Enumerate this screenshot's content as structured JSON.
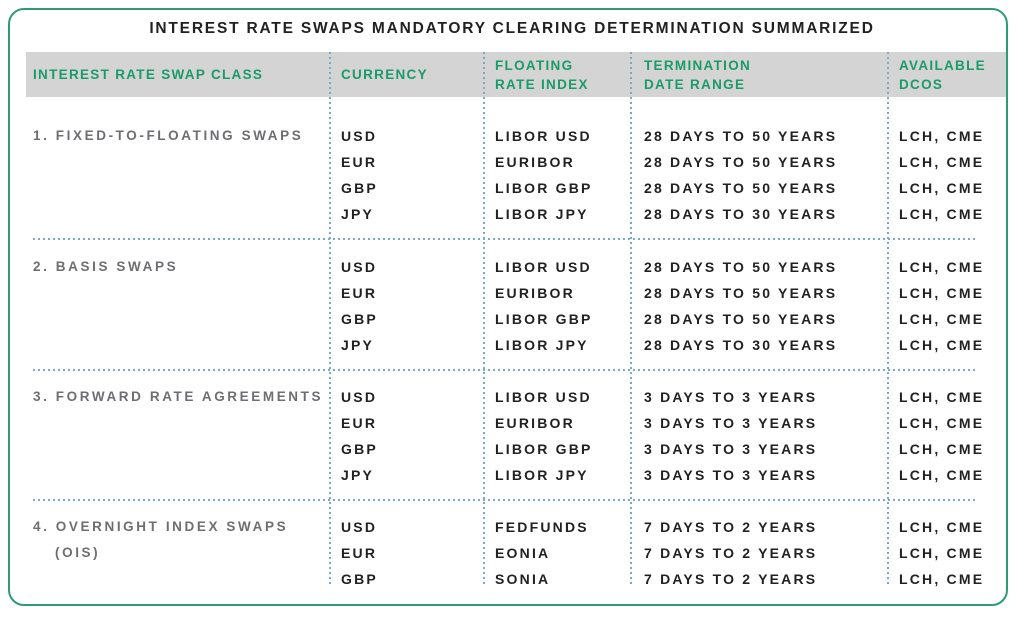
{
  "title": "INTEREST RATE SWAPS MANDATORY CLEARING DETERMINATION SUMMARIZED",
  "colors": {
    "border_green": "#2e9b74",
    "header_text_green": "#1a9b68",
    "header_band_gray": "#d4d4d4",
    "body_text_dark": "#232020",
    "swap_class_gray": "#6d6e71",
    "dotted_separator_blue": "#7aaac6"
  },
  "table": {
    "headers": [
      {
        "lines": [
          "INTEREST RATE SWAP CLASS"
        ]
      },
      {
        "lines": [
          "CURRENCY"
        ]
      },
      {
        "lines": [
          "FLOATING",
          "RATE INDEX"
        ]
      },
      {
        "lines": [
          "TERMINATION",
          "DATE RANGE"
        ]
      },
      {
        "lines": [
          "AVAILABLE",
          "DCOS"
        ]
      }
    ],
    "groups": [
      {
        "swap_class_lines": [
          "1. FIXED-TO-FLOATING SWAPS"
        ],
        "currencies": [
          "USD",
          "EUR",
          "GBP",
          "JPY"
        ],
        "indexes": [
          "LIBOR USD",
          "EURIBOR",
          "LIBOR GBP",
          "LIBOR JPY"
        ],
        "ranges": [
          "28 DAYS TO 50 YEARS",
          "28 DAYS TO 50 YEARS",
          "28 DAYS TO 50 YEARS",
          "28 DAYS TO 30 YEARS"
        ],
        "dcos": [
          "LCH, CME",
          "LCH, CME",
          "LCH, CME",
          "LCH, CME"
        ]
      },
      {
        "swap_class_lines": [
          "2. BASIS SWAPS"
        ],
        "currencies": [
          "USD",
          "EUR",
          "GBP",
          "JPY"
        ],
        "indexes": [
          "LIBOR USD",
          "EURIBOR",
          "LIBOR GBP",
          "LIBOR JPY"
        ],
        "ranges": [
          "28 DAYS TO 50 YEARS",
          "28 DAYS TO 50 YEARS",
          "28 DAYS TO 50 YEARS",
          "28 DAYS TO 30 YEARS"
        ],
        "dcos": [
          "LCH, CME",
          "LCH, CME",
          "LCH, CME",
          "LCH, CME"
        ]
      },
      {
        "swap_class_lines": [
          "3. FORWARD RATE AGREEMENTS"
        ],
        "currencies": [
          "USD",
          "EUR",
          "GBP",
          "JPY"
        ],
        "indexes": [
          "LIBOR USD",
          "EURIBOR",
          "LIBOR GBP",
          "LIBOR JPY"
        ],
        "ranges": [
          "3 DAYS TO 3 YEARS",
          "3 DAYS TO 3 YEARS",
          "3 DAYS TO 3 YEARS",
          "3 DAYS TO 3 YEARS"
        ],
        "dcos": [
          "LCH, CME",
          "LCH, CME",
          "LCH, CME",
          "LCH, CME"
        ]
      },
      {
        "swap_class_lines": [
          "4. OVERNIGHT INDEX SWAPS",
          "(OIS)"
        ],
        "currencies": [
          "USD",
          "EUR",
          "GBP"
        ],
        "indexes": [
          "FEDFUNDS",
          "EONIA",
          "SONIA"
        ],
        "ranges": [
          "7 DAYS TO 2 YEARS",
          "7 DAYS TO 2 YEARS",
          "7 DAYS TO 2 YEARS"
        ],
        "dcos": [
          "LCH, CME",
          "LCH, CME",
          "LCH, CME"
        ]
      }
    ]
  }
}
